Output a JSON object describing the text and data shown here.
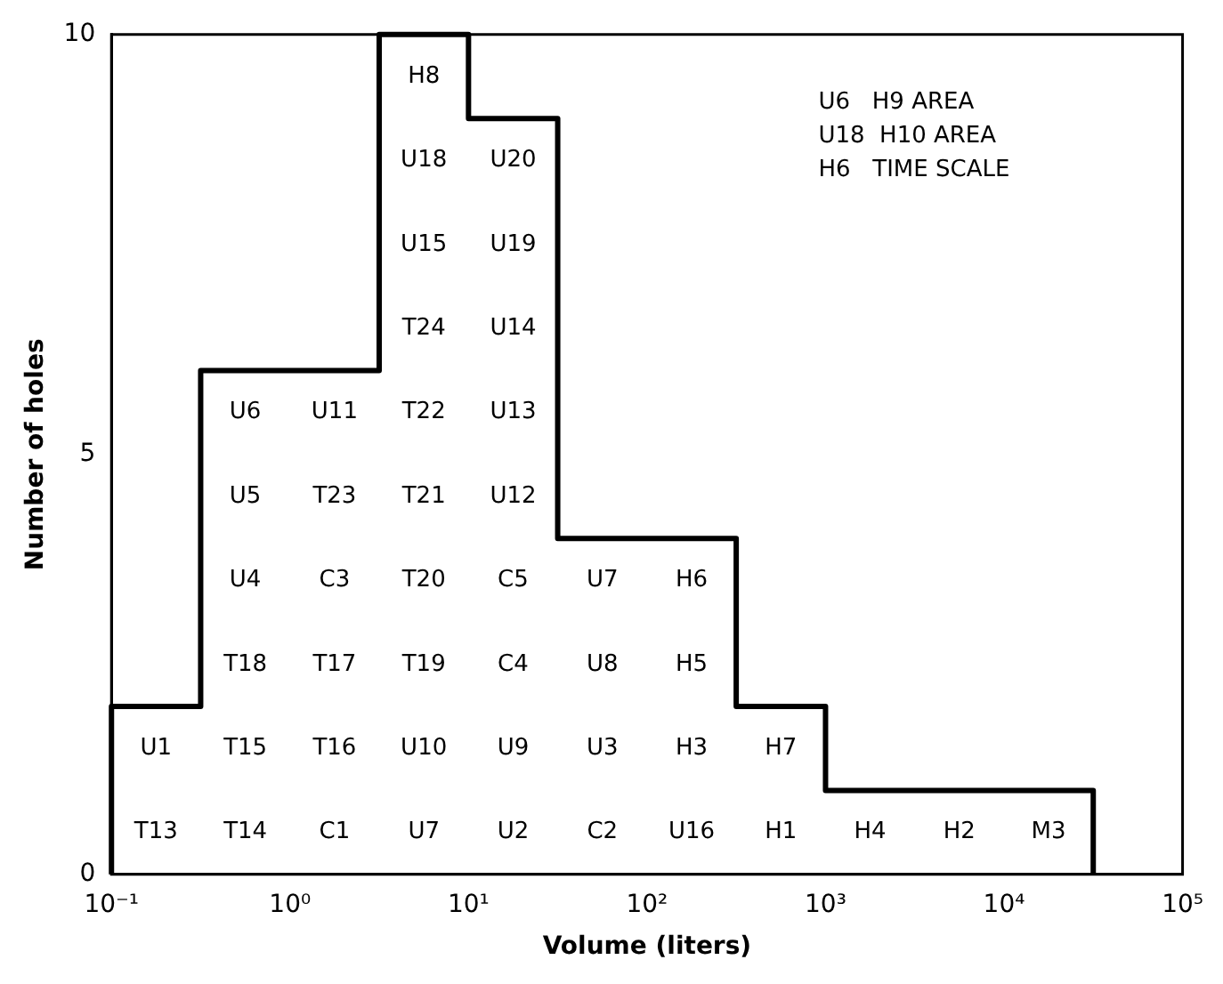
{
  "chart_data": {
    "type": "histogram",
    "xlabel": "Volume (liters)",
    "ylabel": "Number of holes",
    "log": "x",
    "bins": [
      0.1,
      0.316,
      1,
      3.16,
      10,
      31.6,
      100,
      316,
      1000,
      3160,
      10000,
      31600
    ],
    "values": [
      2,
      6,
      6,
      10,
      9,
      4,
      4,
      2,
      1,
      1,
      1
    ],
    "color": "#000000",
    "xlim": [
      0.1,
      100000
    ],
    "xticks": [
      {
        "value": 0.1,
        "label": "10⁻¹"
      },
      {
        "value": 1,
        "label": "10⁰"
      },
      {
        "value": 10,
        "label": "10¹"
      },
      {
        "value": 100,
        "label": "10²"
      },
      {
        "value": 1000,
        "label": "10³"
      },
      {
        "value": 10000,
        "label": "10⁴"
      },
      {
        "value": 100000,
        "label": "10⁵"
      }
    ],
    "ylim": [
      0,
      10
    ],
    "yticks": [
      0,
      5,
      10
    ],
    "annotations": [
      "U6   H9 AREA",
      "U18  H10 AREA",
      "H6   TIME SCALE",
      "T13",
      "U1",
      "T14",
      "T15",
      "T18",
      "U4",
      "U5",
      "U6",
      "C1",
      "T16",
      "T17",
      "C3",
      "T23",
      "U11",
      "U7",
      "U10",
      "T19",
      "T20",
      "T21",
      "T22",
      "T24",
      "U15",
      "U18",
      "H8",
      "U2",
      "U9",
      "C4",
      "C5",
      "U12",
      "U13",
      "U14",
      "U19",
      "U20",
      "C2",
      "U3",
      "U8",
      "U7",
      "U16",
      "H3",
      "H5",
      "H6",
      "H1",
      "H7",
      "H4",
      "H2",
      "M3"
    ]
  }
}
